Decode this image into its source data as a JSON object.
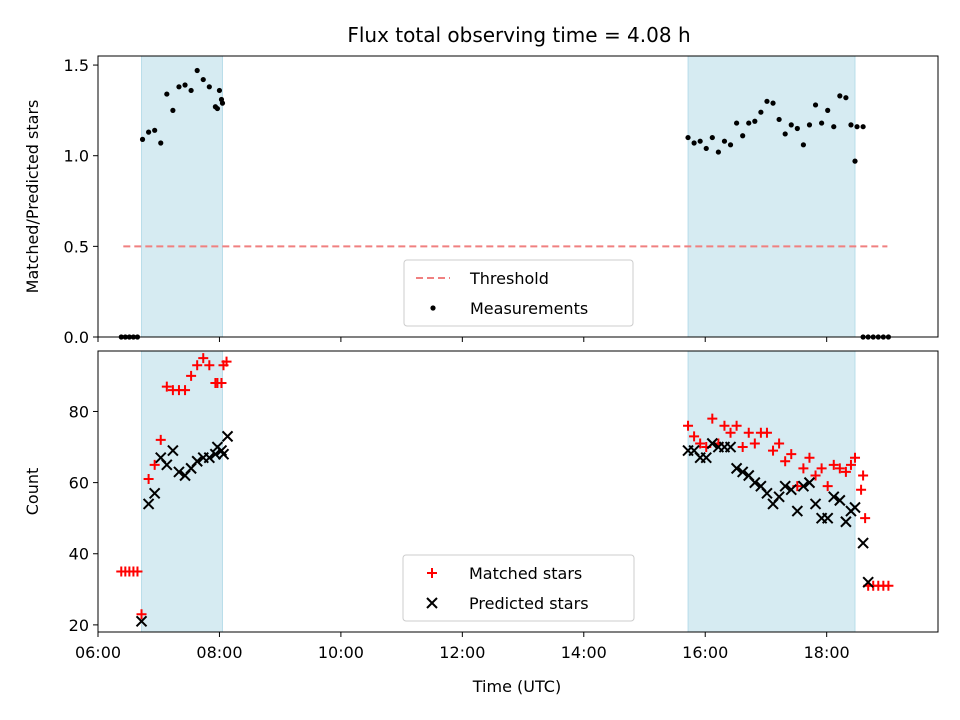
{
  "chart_data": [
    {
      "type": "scatter",
      "title": "Flux total observing time = 4.08 h",
      "ylabel": "Matched/Predicted stars",
      "xlabel": "",
      "ylim": [
        0,
        1.55
      ],
      "xlim": [
        "06:00",
        "19:50"
      ],
      "yticks": [
        "0.0",
        "0.5",
        "1.0",
        "1.5"
      ],
      "grid": false,
      "legend_position": "lower center",
      "threshold": {
        "name": "Threshold",
        "value": 0.5,
        "x_range": [
          "06:25",
          "19:00"
        ],
        "color": "#f08080",
        "style": "dashed"
      },
      "shaded_intervals": [
        [
          "06:43",
          "08:03"
        ],
        [
          "15:43",
          "18:28"
        ]
      ],
      "shade_color": "#add8e6",
      "series": [
        {
          "name": "Measurements",
          "color": "#000000",
          "marker": "dot",
          "points": [
            [
              "06:23",
              0
            ],
            [
              "06:27",
              0
            ],
            [
              "06:31",
              0
            ],
            [
              "06:35",
              0
            ],
            [
              "06:39",
              0
            ],
            [
              "06:44",
              1.09
            ],
            [
              "06:50",
              1.13
            ],
            [
              "06:56",
              1.14
            ],
            [
              "07:02",
              1.07
            ],
            [
              "07:08",
              1.34
            ],
            [
              "07:14",
              1.25
            ],
            [
              "07:20",
              1.38
            ],
            [
              "07:26",
              1.39
            ],
            [
              "07:32",
              1.36
            ],
            [
              "07:38",
              1.47
            ],
            [
              "07:44",
              1.42
            ],
            [
              "07:50",
              1.38
            ],
            [
              "07:56",
              1.27
            ],
            [
              "08:02",
              1.31
            ],
            [
              "07:58",
              1.26
            ],
            [
              "08:00",
              1.36
            ],
            [
              "08:03",
              1.29
            ],
            [
              "15:43",
              1.1
            ],
            [
              "15:49",
              1.07
            ],
            [
              "15:55",
              1.08
            ],
            [
              "16:01",
              1.04
            ],
            [
              "16:07",
              1.1
            ],
            [
              "16:13",
              1.02
            ],
            [
              "16:19",
              1.08
            ],
            [
              "16:25",
              1.06
            ],
            [
              "16:31",
              1.18
            ],
            [
              "16:37",
              1.11
            ],
            [
              "16:43",
              1.18
            ],
            [
              "16:49",
              1.19
            ],
            [
              "16:55",
              1.24
            ],
            [
              "17:01",
              1.3
            ],
            [
              "17:07",
              1.29
            ],
            [
              "17:13",
              1.2
            ],
            [
              "17:19",
              1.12
            ],
            [
              "17:25",
              1.17
            ],
            [
              "17:31",
              1.15
            ],
            [
              "17:37",
              1.06
            ],
            [
              "17:43",
              1.17
            ],
            [
              "17:49",
              1.28
            ],
            [
              "17:55",
              1.18
            ],
            [
              "18:01",
              1.25
            ],
            [
              "18:07",
              1.16
            ],
            [
              "18:13",
              1.33
            ],
            [
              "18:19",
              1.32
            ],
            [
              "18:24",
              1.17
            ],
            [
              "18:30",
              1.16
            ],
            [
              "18:36",
              1.16
            ],
            [
              "18:28",
              0.97
            ],
            [
              "18:36",
              0
            ],
            [
              "18:41",
              0
            ],
            [
              "18:46",
              0
            ],
            [
              "18:51",
              0
            ],
            [
              "18:56",
              0
            ],
            [
              "19:01",
              0
            ]
          ]
        }
      ]
    },
    {
      "type": "scatter",
      "title": "",
      "ylabel": "Count",
      "xlabel": "Time (UTC)",
      "ylim": [
        18,
        97
      ],
      "xlim": [
        "06:00",
        "19:50"
      ],
      "yticks": [
        "20",
        "40",
        "60",
        "80"
      ],
      "xticks": [
        "06:00",
        "08:00",
        "10:00",
        "12:00",
        "14:00",
        "16:00",
        "18:00"
      ],
      "grid": false,
      "legend_position": "lower center",
      "shaded_intervals": [
        [
          "06:43",
          "08:03"
        ],
        [
          "15:43",
          "18:28"
        ]
      ],
      "shade_color": "#add8e6",
      "series": [
        {
          "name": "Matched stars",
          "color": "#ff0000",
          "marker": "plus",
          "points": [
            [
              "06:23",
              35
            ],
            [
              "06:27",
              35
            ],
            [
              "06:31",
              35
            ],
            [
              "06:35",
              35
            ],
            [
              "06:39",
              35
            ],
            [
              "06:43",
              23
            ],
            [
              "06:50",
              61
            ],
            [
              "06:56",
              65
            ],
            [
              "07:02",
              72
            ],
            [
              "07:08",
              87
            ],
            [
              "07:14",
              86
            ],
            [
              "07:20",
              86
            ],
            [
              "07:26",
              86
            ],
            [
              "07:32",
              90
            ],
            [
              "07:38",
              93
            ],
            [
              "07:44",
              95
            ],
            [
              "07:50",
              93
            ],
            [
              "07:56",
              88
            ],
            [
              "08:02",
              88
            ],
            [
              "07:58",
              88
            ],
            [
              "08:04",
              93
            ],
            [
              "08:07",
              94
            ],
            [
              "15:43",
              76
            ],
            [
              "15:49",
              73
            ],
            [
              "15:55",
              71
            ],
            [
              "16:01",
              70
            ],
            [
              "16:07",
              78
            ],
            [
              "16:13",
              71
            ],
            [
              "16:19",
              76
            ],
            [
              "16:25",
              74
            ],
            [
              "16:31",
              76
            ],
            [
              "16:37",
              70
            ],
            [
              "16:43",
              74
            ],
            [
              "16:49",
              71
            ],
            [
              "16:55",
              74
            ],
            [
              "17:01",
              74
            ],
            [
              "17:07",
              69
            ],
            [
              "17:13",
              71
            ],
            [
              "17:19",
              66
            ],
            [
              "17:25",
              68
            ],
            [
              "17:31",
              59
            ],
            [
              "17:37",
              64
            ],
            [
              "17:43",
              67
            ],
            [
              "17:49",
              62
            ],
            [
              "17:55",
              64
            ],
            [
              "18:01",
              59
            ],
            [
              "18:07",
              65
            ],
            [
              "18:13",
              64
            ],
            [
              "18:19",
              63
            ],
            [
              "18:24",
              65
            ],
            [
              "18:28",
              67
            ],
            [
              "18:36",
              62
            ],
            [
              "18:34",
              58
            ],
            [
              "18:38",
              50
            ],
            [
              "18:41",
              31
            ],
            [
              "18:46",
              31
            ],
            [
              "18:51",
              31
            ],
            [
              "18:56",
              31
            ],
            [
              "19:01",
              31
            ]
          ]
        },
        {
          "name": "Predicted stars",
          "color": "#000000",
          "marker": "x",
          "points": [
            [
              "06:43",
              21
            ],
            [
              "06:50",
              54
            ],
            [
              "06:56",
              57
            ],
            [
              "07:02",
              67
            ],
            [
              "07:08",
              65
            ],
            [
              "07:14",
              69
            ],
            [
              "07:20",
              63
            ],
            [
              "07:26",
              62
            ],
            [
              "07:32",
              64
            ],
            [
              "07:38",
              66
            ],
            [
              "07:44",
              67
            ],
            [
              "07:50",
              67
            ],
            [
              "07:56",
              68
            ],
            [
              "08:02",
              69
            ],
            [
              "07:58",
              70
            ],
            [
              "08:04",
              68
            ],
            [
              "08:08",
              73
            ],
            [
              "15:43",
              69
            ],
            [
              "15:49",
              69
            ],
            [
              "15:55",
              67
            ],
            [
              "16:01",
              67
            ],
            [
              "16:07",
              71
            ],
            [
              "16:13",
              70
            ],
            [
              "16:19",
              70
            ],
            [
              "16:25",
              70
            ],
            [
              "16:31",
              64
            ],
            [
              "16:37",
              63
            ],
            [
              "16:43",
              62
            ],
            [
              "16:49",
              60
            ],
            [
              "16:55",
              59
            ],
            [
              "17:01",
              57
            ],
            [
              "17:07",
              54
            ],
            [
              "17:13",
              56
            ],
            [
              "17:19",
              59
            ],
            [
              "17:25",
              58
            ],
            [
              "17:31",
              52
            ],
            [
              "17:37",
              59
            ],
            [
              "17:43",
              60
            ],
            [
              "17:49",
              54
            ],
            [
              "17:55",
              50
            ],
            [
              "18:01",
              50
            ],
            [
              "18:07",
              56
            ],
            [
              "18:13",
              55
            ],
            [
              "18:19",
              49
            ],
            [
              "18:24",
              52
            ],
            [
              "18:28",
              53
            ],
            [
              "18:36",
              43
            ],
            [
              "18:41",
              32
            ]
          ]
        }
      ]
    }
  ]
}
